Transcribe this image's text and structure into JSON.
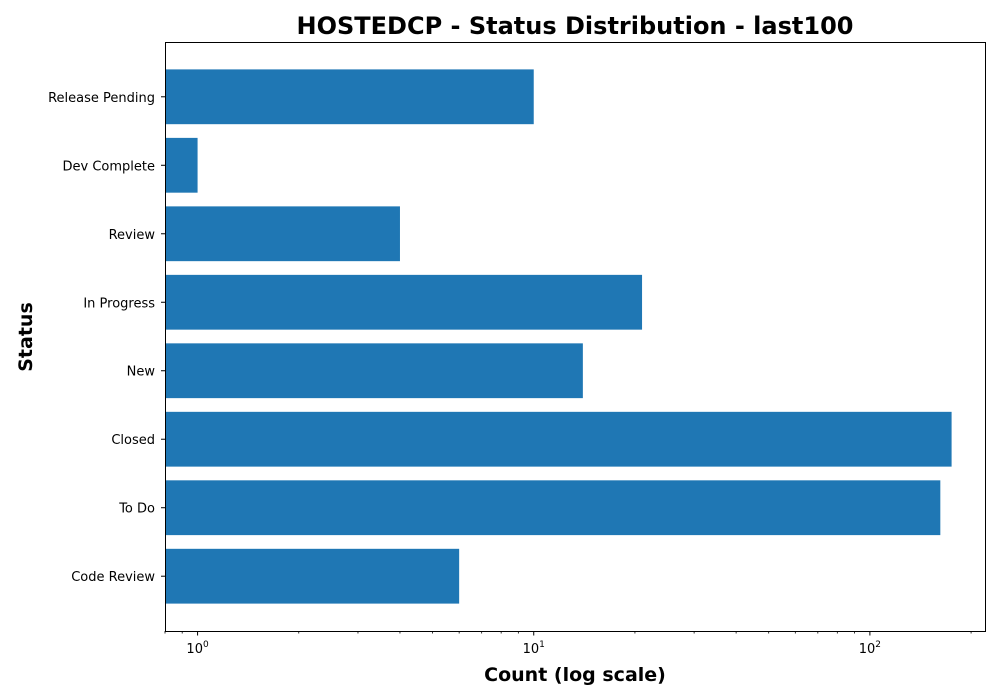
{
  "chart_data": {
    "type": "bar",
    "orientation": "horizontal",
    "title": "HOSTEDCP - Status Distribution - last100",
    "xlabel": "Count (log scale)",
    "ylabel": "Status",
    "x_scale": "log",
    "xlim": [
      0.8,
      220
    ],
    "x_major_ticks": [
      {
        "value": 1,
        "base": "10",
        "exp": "0"
      },
      {
        "value": 10,
        "base": "10",
        "exp": "1"
      },
      {
        "value": 100,
        "base": "10",
        "exp": "2"
      }
    ],
    "categories": [
      "Code Review",
      "To Do",
      "Closed",
      "New",
      "In Progress",
      "Review",
      "Dev Complete",
      "Release Pending"
    ],
    "values": [
      6,
      162,
      175,
      14,
      21,
      4,
      1,
      10
    ],
    "bar_color": "#1f77b4",
    "grid": false,
    "legend": "none"
  }
}
